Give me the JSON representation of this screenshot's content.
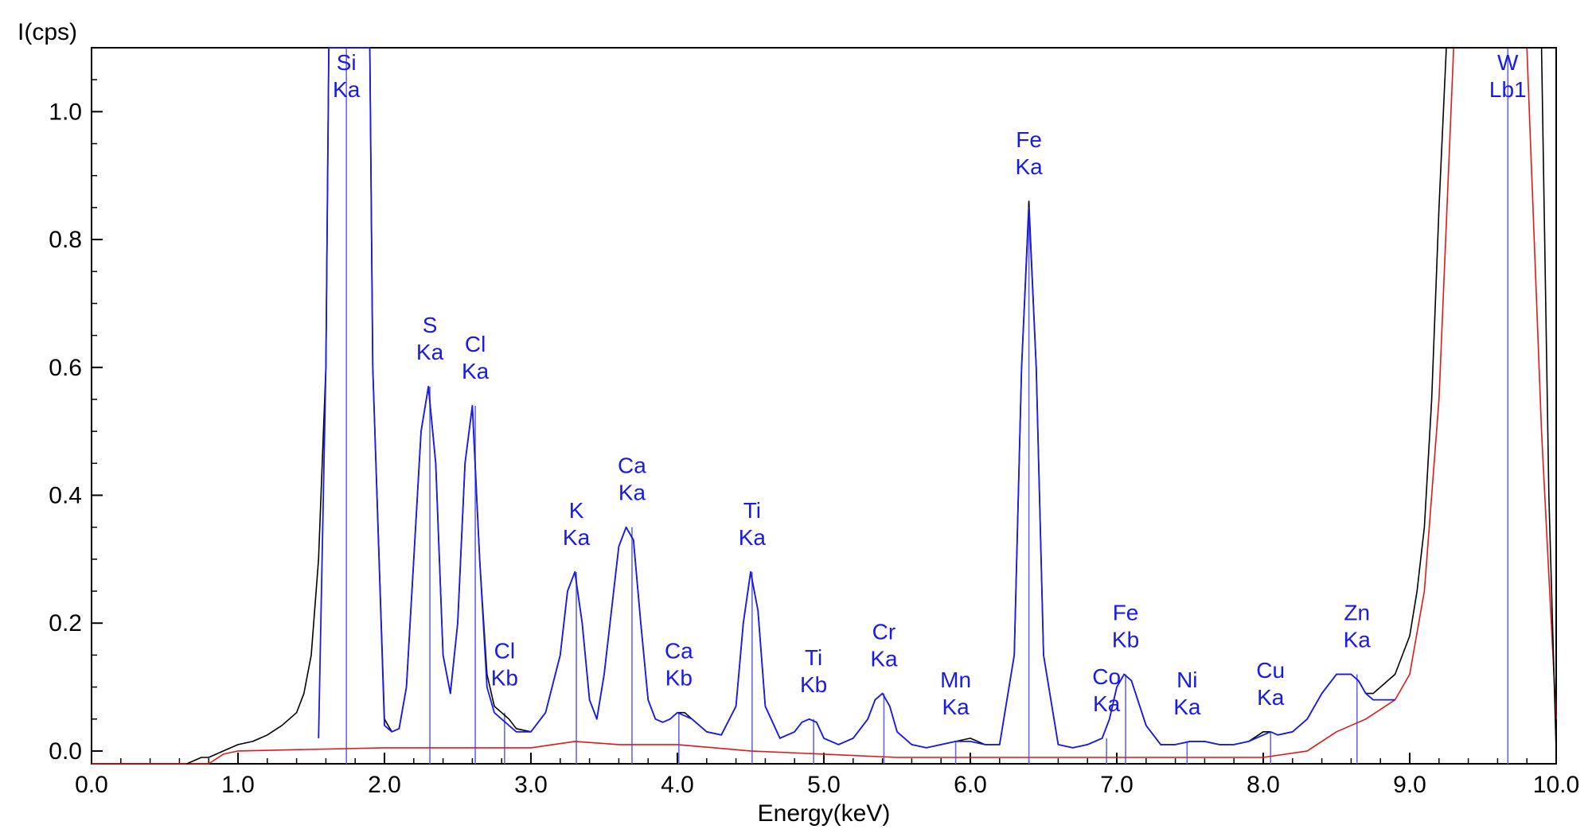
{
  "chart_data": {
    "type": "line",
    "title": "",
    "xlabel": "Energy(keV)",
    "ylabel": "I(cps)",
    "xlim": [
      0,
      10
    ],
    "ylim": [
      -0.02,
      1.1
    ],
    "xticks": [
      "0.0",
      "1.0",
      "2.0",
      "3.0",
      "4.0",
      "5.0",
      "6.0",
      "7.0",
      "8.0",
      "9.0",
      "10.0"
    ],
    "yticks": [
      "0.0",
      "0.2",
      "0.4",
      "0.6",
      "0.8",
      "1.0"
    ],
    "grid": false,
    "colors": {
      "measured": "#000000",
      "fitted": "#1a1ae6",
      "background": "#e01818",
      "peak_markers": "#6666ee",
      "labels": "#1a1ae6"
    },
    "series": [
      {
        "role": "measured",
        "x": [
          0.65,
          0.75,
          0.8,
          0.9,
          1.0,
          1.1,
          1.15,
          1.2,
          1.3,
          1.4,
          1.45,
          1.5,
          1.55,
          1.6,
          1.62,
          1.9,
          1.92,
          2.0,
          2.05,
          2.1,
          2.15,
          2.2,
          2.25,
          2.3,
          2.35,
          2.4,
          2.45,
          2.5,
          2.55,
          2.6,
          2.65,
          2.7,
          2.75,
          2.8,
          2.85,
          2.9,
          3.0,
          3.1,
          3.2,
          3.25,
          3.3,
          3.35,
          3.4,
          3.45,
          3.5,
          3.6,
          3.65,
          3.7,
          3.75,
          3.8,
          3.85,
          3.9,
          3.95,
          4.0,
          4.05,
          4.1,
          4.2,
          4.3,
          4.4,
          4.45,
          4.5,
          4.55,
          4.6,
          4.7,
          4.8,
          4.85,
          4.9,
          4.95,
          5.0,
          5.1,
          5.2,
          5.3,
          5.35,
          5.4,
          5.45,
          5.5,
          5.6,
          5.7,
          5.8,
          5.9,
          6.0,
          6.1,
          6.2,
          6.3,
          6.35,
          6.4,
          6.45,
          6.5,
          6.6,
          6.7,
          6.8,
          6.9,
          6.95,
          7.0,
          7.05,
          7.1,
          7.2,
          7.3,
          7.4,
          7.5,
          7.6,
          7.7,
          7.8,
          7.9,
          8.0,
          8.05,
          8.1,
          8.2,
          8.3,
          8.4,
          8.5,
          8.6,
          8.65,
          8.7,
          8.75,
          8.8,
          8.9,
          9.0,
          9.05,
          9.1,
          9.15,
          9.2,
          9.25,
          9.9,
          9.95,
          10.0
        ],
        "y": [
          -0.02,
          -0.01,
          -0.01,
          0.0,
          0.01,
          0.015,
          0.02,
          0.025,
          0.04,
          0.06,
          0.09,
          0.15,
          0.3,
          0.6,
          1.1,
          1.1,
          0.6,
          0.05,
          0.03,
          0.035,
          0.1,
          0.3,
          0.5,
          0.57,
          0.45,
          0.15,
          0.09,
          0.2,
          0.45,
          0.54,
          0.3,
          0.12,
          0.07,
          0.06,
          0.05,
          0.035,
          0.03,
          0.06,
          0.15,
          0.25,
          0.28,
          0.2,
          0.08,
          0.05,
          0.12,
          0.32,
          0.35,
          0.33,
          0.2,
          0.08,
          0.05,
          0.045,
          0.05,
          0.06,
          0.06,
          0.05,
          0.03,
          0.025,
          0.07,
          0.2,
          0.28,
          0.22,
          0.07,
          0.02,
          0.03,
          0.045,
          0.05,
          0.045,
          0.02,
          0.01,
          0.02,
          0.05,
          0.08,
          0.09,
          0.07,
          0.03,
          0.01,
          0.005,
          0.01,
          0.015,
          0.02,
          0.01,
          0.01,
          0.15,
          0.6,
          0.86,
          0.6,
          0.15,
          0.01,
          0.005,
          0.01,
          0.02,
          0.05,
          0.1,
          0.12,
          0.11,
          0.04,
          0.01,
          0.01,
          0.015,
          0.015,
          0.01,
          0.01,
          0.015,
          0.03,
          0.03,
          0.025,
          0.03,
          0.05,
          0.09,
          0.12,
          0.12,
          0.11,
          0.09,
          0.09,
          0.1,
          0.12,
          0.18,
          0.25,
          0.35,
          0.55,
          0.85,
          1.1,
          1.1,
          0.4,
          0.0
        ]
      },
      {
        "role": "fitted",
        "x": [
          1.55,
          1.6,
          1.62,
          1.9,
          1.92,
          2.0,
          2.05,
          2.1,
          2.15,
          2.2,
          2.25,
          2.3,
          2.35,
          2.4,
          2.45,
          2.5,
          2.55,
          2.6,
          2.65,
          2.7,
          2.75,
          2.8,
          2.85,
          2.9,
          3.0,
          3.1,
          3.2,
          3.25,
          3.3,
          3.35,
          3.4,
          3.45,
          3.5,
          3.6,
          3.65,
          3.7,
          3.75,
          3.8,
          3.85,
          3.9,
          3.95,
          4.0,
          4.05,
          4.1,
          4.2,
          4.3,
          4.4,
          4.45,
          4.5,
          4.55,
          4.6,
          4.7,
          4.8,
          4.85,
          4.9,
          4.95,
          5.0,
          5.1,
          5.2,
          5.3,
          5.35,
          5.4,
          5.45,
          5.5,
          5.6,
          5.7,
          5.8,
          5.9,
          6.0,
          6.1,
          6.2,
          6.3,
          6.35,
          6.4,
          6.45,
          6.5,
          6.6,
          6.7,
          6.8,
          6.9,
          6.95,
          7.0,
          7.05,
          7.1,
          7.2,
          7.3,
          7.4,
          7.5,
          7.6,
          7.7,
          7.8,
          7.9,
          8.0,
          8.05,
          8.1,
          8.2,
          8.3,
          8.4,
          8.5,
          8.6,
          8.65,
          8.7,
          8.75,
          8.8,
          8.9
        ],
        "y": [
          0.02,
          0.6,
          1.1,
          1.1,
          0.6,
          0.04,
          0.03,
          0.035,
          0.1,
          0.3,
          0.5,
          0.57,
          0.45,
          0.15,
          0.09,
          0.2,
          0.45,
          0.54,
          0.3,
          0.1,
          0.06,
          0.05,
          0.04,
          0.03,
          0.03,
          0.06,
          0.15,
          0.25,
          0.28,
          0.2,
          0.08,
          0.05,
          0.12,
          0.32,
          0.35,
          0.33,
          0.2,
          0.08,
          0.05,
          0.045,
          0.05,
          0.06,
          0.055,
          0.05,
          0.03,
          0.025,
          0.07,
          0.2,
          0.28,
          0.22,
          0.07,
          0.02,
          0.03,
          0.045,
          0.05,
          0.045,
          0.02,
          0.01,
          0.02,
          0.05,
          0.08,
          0.09,
          0.07,
          0.03,
          0.01,
          0.005,
          0.01,
          0.015,
          0.015,
          0.01,
          0.01,
          0.15,
          0.6,
          0.85,
          0.6,
          0.15,
          0.01,
          0.005,
          0.01,
          0.02,
          0.05,
          0.1,
          0.12,
          0.11,
          0.04,
          0.01,
          0.01,
          0.015,
          0.015,
          0.01,
          0.01,
          0.015,
          0.025,
          0.03,
          0.025,
          0.03,
          0.05,
          0.09,
          0.12,
          0.12,
          0.11,
          0.09,
          0.08,
          0.08,
          0.08
        ]
      },
      {
        "role": "background",
        "x": [
          0.0,
          0.8,
          0.9,
          1.0,
          2.0,
          2.5,
          3.0,
          3.3,
          3.6,
          4.0,
          4.5,
          5.0,
          5.5,
          6.0,
          6.5,
          7.0,
          7.5,
          8.0,
          8.3,
          8.5,
          8.7,
          8.9,
          9.0,
          9.1,
          9.2,
          9.3,
          9.8,
          9.9,
          10.0
        ],
        "y": [
          -0.02,
          -0.02,
          -0.005,
          0.0,
          0.005,
          0.005,
          0.005,
          0.015,
          0.01,
          0.01,
          0.0,
          -0.005,
          -0.01,
          -0.01,
          -0.01,
          -0.01,
          -0.01,
          -0.01,
          0.0,
          0.03,
          0.05,
          0.08,
          0.12,
          0.25,
          0.55,
          1.1,
          1.1,
          0.5,
          0.05
        ]
      }
    ],
    "peaks": [
      {
        "element": "Si",
        "line": "Ka",
        "energy": 1.74,
        "height": 1.1
      },
      {
        "element": "S",
        "line": "Ka",
        "energy": 2.31,
        "height": 0.57
      },
      {
        "element": "Cl",
        "line": "Ka",
        "energy": 2.62,
        "height": 0.54
      },
      {
        "element": "Cl",
        "line": "Kb",
        "energy": 2.82,
        "height": 0.06
      },
      {
        "element": "K",
        "line": "Ka",
        "energy": 3.31,
        "height": 0.28
      },
      {
        "element": "Ca",
        "line": "Ka",
        "energy": 3.69,
        "height": 0.35
      },
      {
        "element": "Ca",
        "line": "Kb",
        "energy": 4.01,
        "height": 0.06
      },
      {
        "element": "Ti",
        "line": "Ka",
        "energy": 4.51,
        "height": 0.28
      },
      {
        "element": "Ti",
        "line": "Kb",
        "energy": 4.93,
        "height": 0.05
      },
      {
        "element": "Cr",
        "line": "Ka",
        "energy": 5.41,
        "height": 0.09
      },
      {
        "element": "Mn",
        "line": "Ka",
        "energy": 5.9,
        "height": 0.015
      },
      {
        "element": "Fe",
        "line": "Ka",
        "energy": 6.4,
        "height": 0.86
      },
      {
        "element": "Co",
        "line": "Ka",
        "energy": 6.93,
        "height": 0.02
      },
      {
        "element": "Fe",
        "line": "Kb",
        "energy": 7.06,
        "height": 0.12
      },
      {
        "element": "Ni",
        "line": "Ka",
        "energy": 7.48,
        "height": 0.015
      },
      {
        "element": "Cu",
        "line": "Ka",
        "energy": 8.05,
        "height": 0.03
      },
      {
        "element": "Zn",
        "line": "Ka",
        "energy": 8.64,
        "height": 0.12
      },
      {
        "element": "W",
        "line": "Lb1",
        "energy": 9.67,
        "height": 1.1
      }
    ]
  }
}
